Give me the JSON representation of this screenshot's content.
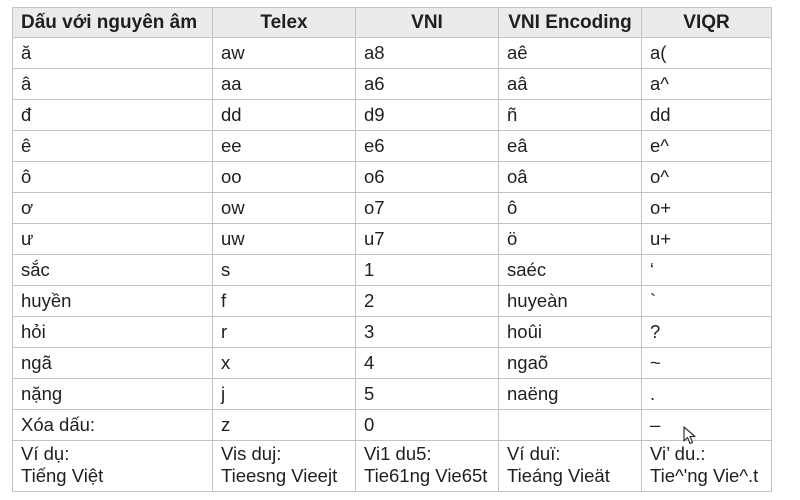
{
  "headers": [
    "Dấu với nguyên âm",
    "Telex",
    "VNI",
    "VNI Encoding",
    "VIQR"
  ],
  "rows": [
    [
      "ă",
      "aw",
      "a8",
      "aê",
      "a("
    ],
    [
      "â",
      "aa",
      "a6",
      "aâ",
      "a^"
    ],
    [
      "đ",
      "dd",
      "d9",
      "ñ",
      "dd"
    ],
    [
      "ê",
      "ee",
      "e6",
      "eâ",
      "e^"
    ],
    [
      "ô",
      "oo",
      "o6",
      "oâ",
      "o^"
    ],
    [
      "ơ",
      "ow",
      "o7",
      "ô",
      "o+"
    ],
    [
      "ư",
      "uw",
      "u7",
      "ö",
      "u+"
    ],
    [
      "sắc",
      "s",
      "1",
      "saéc",
      "‘"
    ],
    [
      "huyền",
      "f",
      "2",
      "huyeàn",
      "`"
    ],
    [
      "hỏi",
      "r",
      "3",
      "hoûi",
      " ?"
    ],
    [
      "ngã",
      "x",
      "4",
      "ngaõ",
      "~"
    ],
    [
      "nặng",
      "j",
      "5",
      "naëng",
      "."
    ],
    [
      "Xóa dấu:",
      "z",
      "0",
      "",
      "–"
    ]
  ],
  "example": [
    [
      "Ví dụ:",
      "Tiếng Việt"
    ],
    [
      "Vis duj:",
      "Tieesng Vieejt"
    ],
    [
      "Vi1 du5:",
      "Tie61ng Vie65t"
    ],
    [
      "Ví duï:",
      "Tieáng Vieät"
    ],
    [
      "Vi’ du.:",
      "Tie^'ng Vie^.t"
    ]
  ],
  "icons": {
    "cursor": "mouse-pointer-icon"
  }
}
